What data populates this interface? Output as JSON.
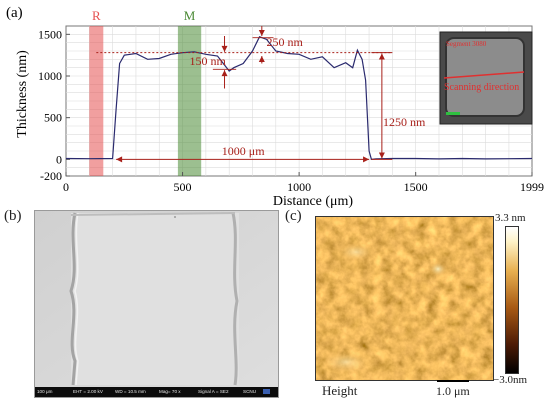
{
  "panel_labels": {
    "a": "(a)",
    "b": "(b)",
    "c": "(c)"
  },
  "chart_data": {
    "type": "line",
    "xlabel": "Distance (μm)",
    "ylabel": "Thickness (nm)",
    "x_ticks": [
      0,
      500,
      1000,
      1500,
      1999
    ],
    "y_ticks": [
      1500,
      1000,
      500,
      0,
      -200
    ],
    "xlim": [
      0,
      1999
    ],
    "ylim": [
      -200,
      1600
    ],
    "grid": true,
    "region_markers": [
      {
        "label": "R",
        "x_start": 100,
        "x_end": 160,
        "color": "#e55050"
      },
      {
        "label": "M",
        "x_start": 480,
        "x_end": 580,
        "color": "#4a8a35"
      }
    ],
    "series": [
      {
        "color": "#2a2a6e",
        "x": [
          0,
          100,
          200,
          215,
          230,
          250,
          300,
          350,
          400,
          450,
          500,
          550,
          600,
          650,
          700,
          720,
          760,
          800,
          830,
          860,
          900,
          950,
          1000,
          1050,
          1100,
          1150,
          1200,
          1230,
          1250,
          1270,
          1285,
          1300,
          1310,
          1330,
          1400,
          1500,
          1600,
          1700,
          1800,
          1900,
          1999
        ],
        "y": [
          10,
          8,
          10,
          600,
          1150,
          1250,
          1270,
          1200,
          1210,
          1260,
          1280,
          1290,
          1260,
          1240,
          1060,
          1100,
          1150,
          1300,
          1470,
          1440,
          1300,
          1270,
          1260,
          1200,
          1230,
          1100,
          1160,
          1100,
          1310,
          1200,
          950,
          100,
          0,
          5,
          10,
          10,
          5,
          10,
          5,
          8,
          10
        ]
      }
    ],
    "annotations": [
      {
        "text": "250 nm"
      },
      {
        "text": "150 nm"
      },
      {
        "text": "1250 nm"
      },
      {
        "text": "1000 μm"
      }
    ],
    "inset": {
      "text1": "Segment 3080",
      "text2": "Scanning direction"
    }
  },
  "sem_footer": {
    "scale": "100 μm",
    "eht": "EHT = 2.00 kV",
    "wd": "WD = 10.5 mm",
    "mag": "Mag= 70 x",
    "signal": "Signal A = SE2",
    "inst": "SCNU"
  },
  "afm": {
    "colorbar_max": "3.3 nm",
    "colorbar_min": "−3.0nm",
    "label": "Height",
    "scale_bar": "1.0 μm"
  }
}
